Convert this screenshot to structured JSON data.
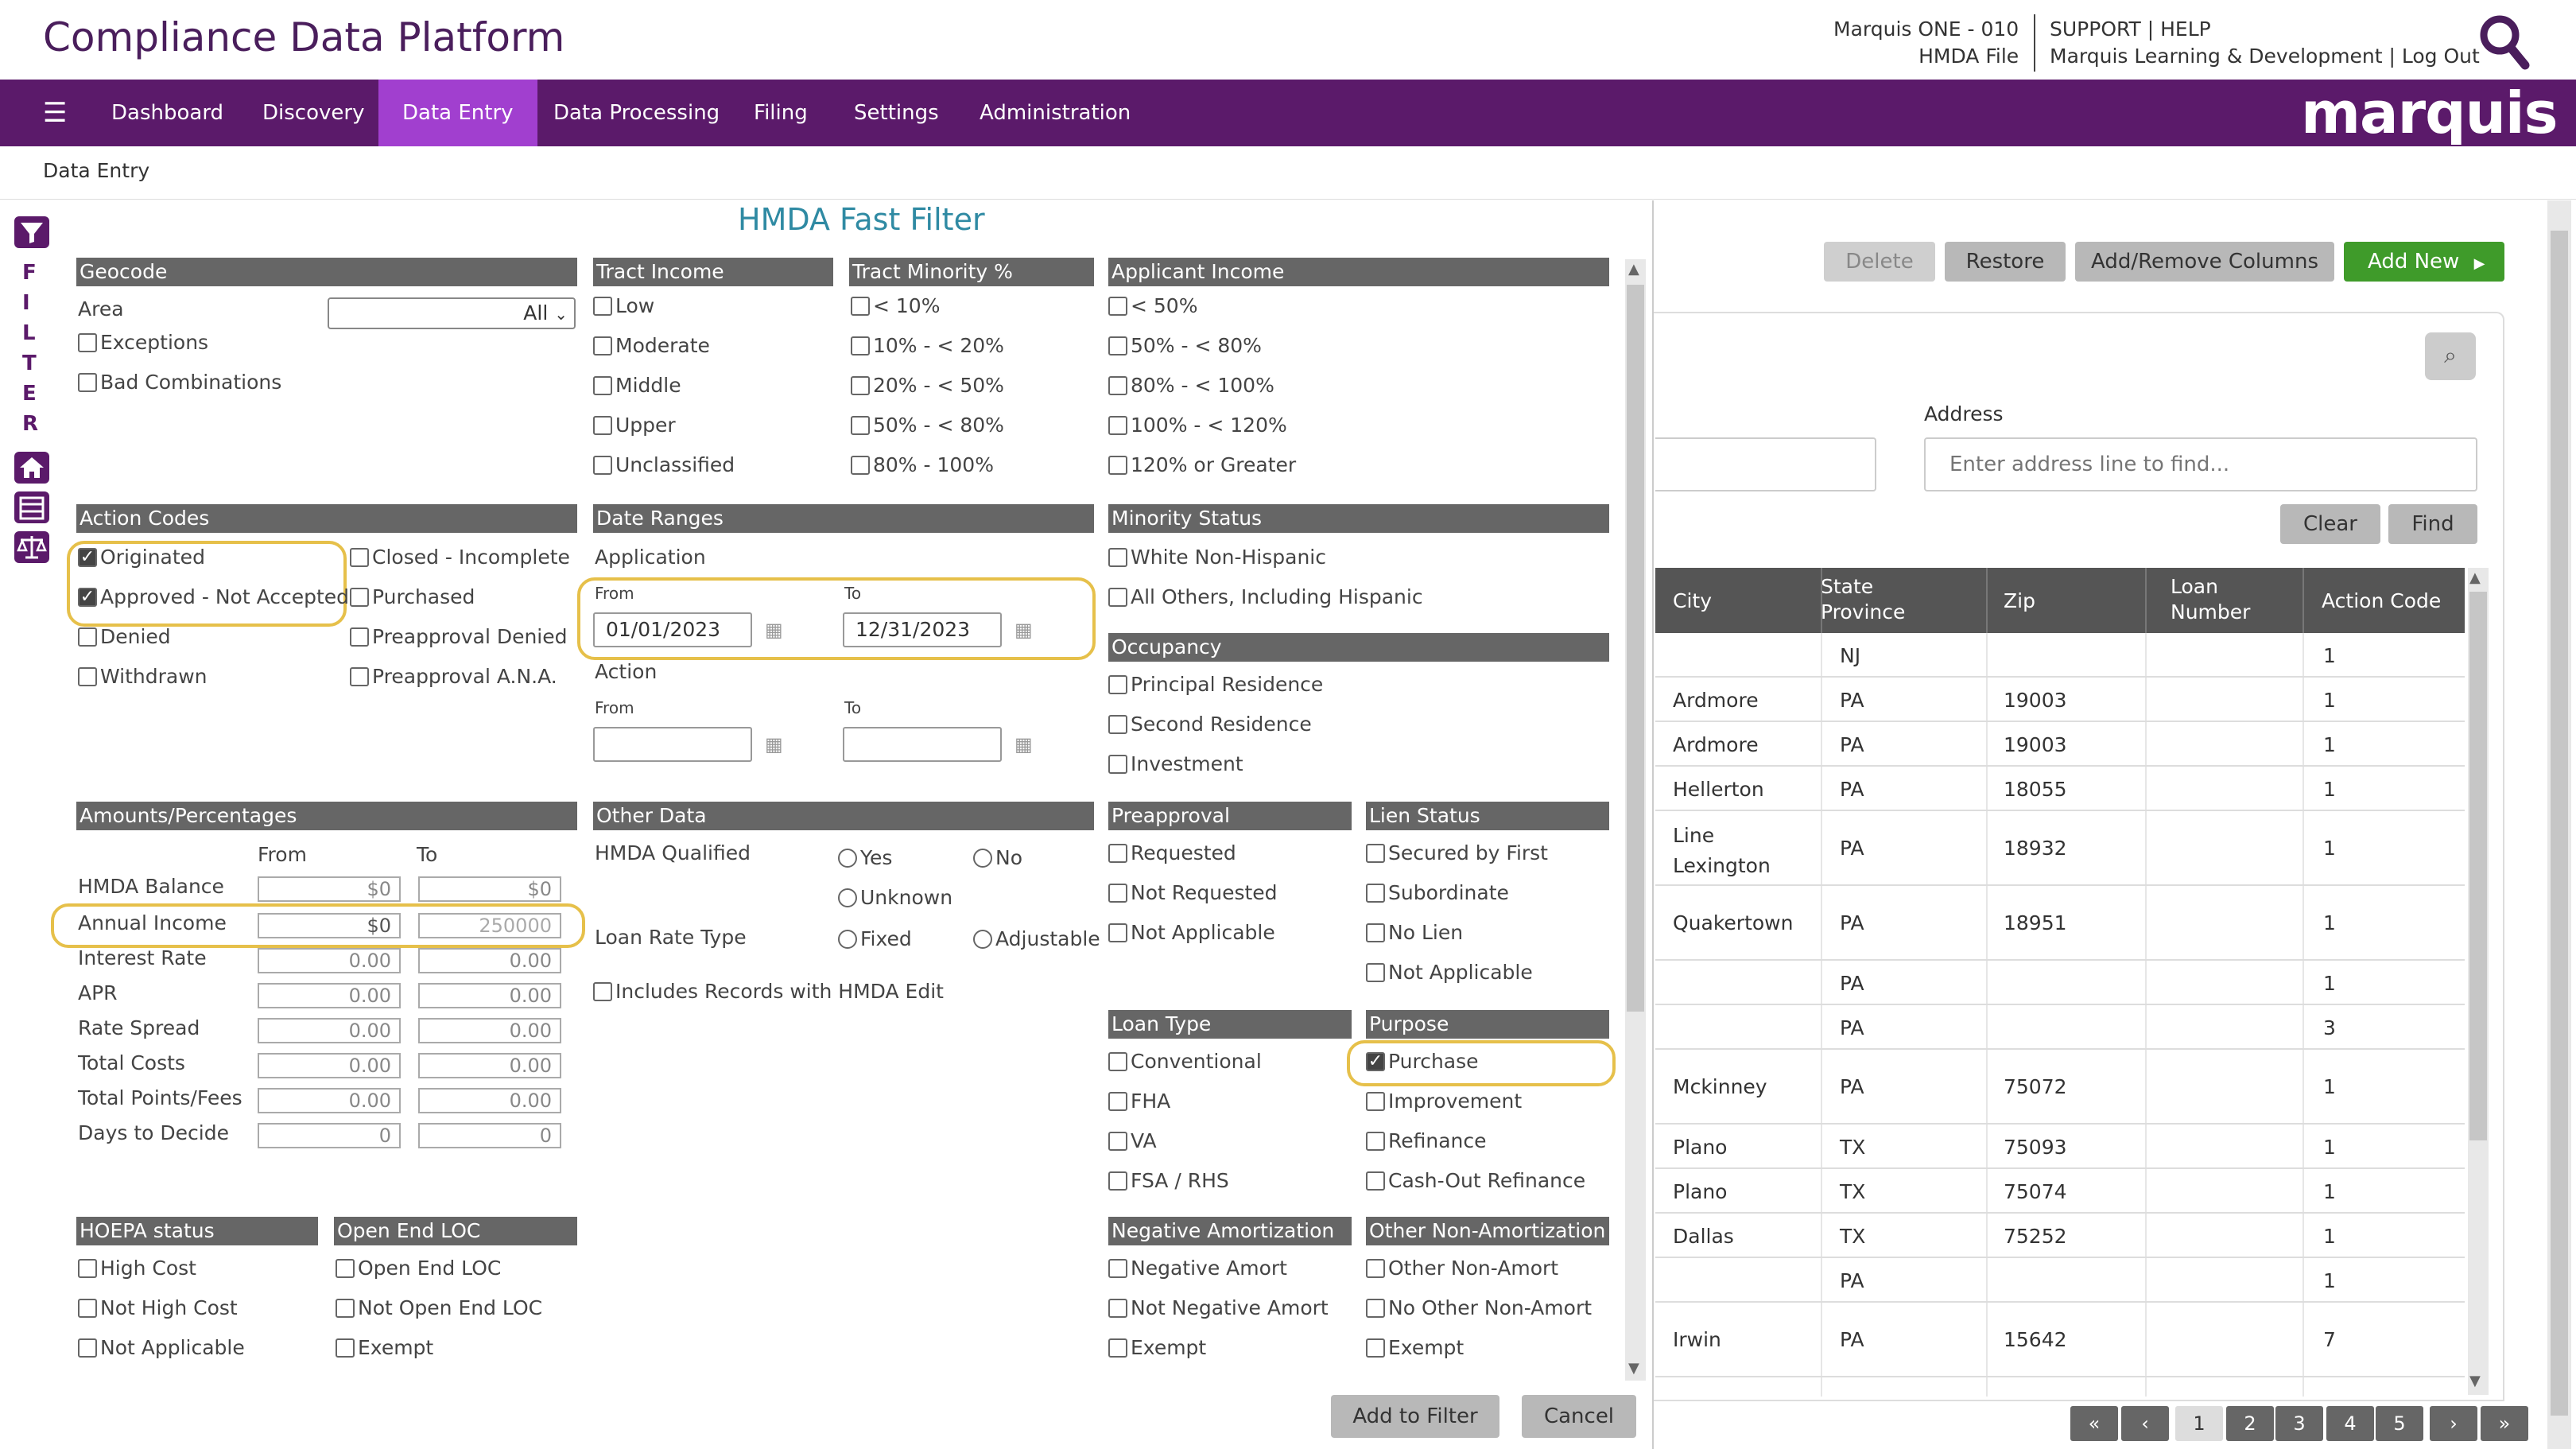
{
  "header": {
    "app_title": "Compliance Data Platform",
    "org_line1": "Marquis ONE - 010",
    "org_line2": "HMDA File",
    "links_line1": "SUPPORT | HELP",
    "links_line2": "Marquis Learning & Development | Log Out",
    "brand": "marquis"
  },
  "nav": {
    "items": [
      "Dashboard",
      "Discovery",
      "Data Entry",
      "Data Processing",
      "Filing",
      "Settings",
      "Administration"
    ],
    "active": "Data Entry"
  },
  "breadcrumb": "Data Entry",
  "sidebar": {
    "filter_letters": [
      "F",
      "I",
      "L",
      "T",
      "E",
      "R"
    ]
  },
  "filter": {
    "title": "HMDA Fast Filter",
    "geocode": {
      "header": "Geocode",
      "area_label": "Area",
      "area_value": "All",
      "exceptions": "Exceptions",
      "bad_combinations": "Bad Combinations"
    },
    "tract_income": {
      "header": "Tract Income",
      "options": [
        "Low",
        "Moderate",
        "Middle",
        "Upper",
        "Unclassified"
      ]
    },
    "tract_minority": {
      "header": "Tract Minority %",
      "options": [
        "< 10%",
        "10% - < 20%",
        "20% - < 50%",
        "50% - < 80%",
        "80% - 100%"
      ]
    },
    "applicant_income": {
      "header": "Applicant Income",
      "options": [
        "< 50%",
        "50% - < 80%",
        "80% - < 100%",
        "100% - < 120%",
        "120% or Greater"
      ]
    },
    "action_codes": {
      "header": "Action Codes",
      "originated": "Originated",
      "approved": "Approved - Not Accepted",
      "denied": "Denied",
      "withdrawn": "Withdrawn",
      "closed": "Closed - Incomplete",
      "purchased": "Purchased",
      "preapproval_denied": "Preapproval Denied",
      "preapproval_ana": "Preapproval A.N.A."
    },
    "date_ranges": {
      "header": "Date Ranges",
      "application": "Application",
      "from": "From",
      "to": "To",
      "app_from": "01/01/2023",
      "app_to": "12/31/2023",
      "action": "Action"
    },
    "minority_status": {
      "header": "Minority Status",
      "options": [
        "White Non-Hispanic",
        "All Others, Including Hispanic"
      ]
    },
    "occupancy": {
      "header": "Occupancy",
      "options": [
        "Principal Residence",
        "Second Residence",
        "Investment"
      ]
    },
    "amounts": {
      "header": "Amounts/Percentages",
      "from": "From",
      "to": "To",
      "rows": [
        {
          "label": "HMDA Balance",
          "from": "$0",
          "to": "$0"
        },
        {
          "label": "Annual Income",
          "from": "$0",
          "to": "250000"
        },
        {
          "label": "Interest Rate",
          "from": "0.00",
          "to": "0.00"
        },
        {
          "label": "APR",
          "from": "0.00",
          "to": "0.00"
        },
        {
          "label": "Rate Spread",
          "from": "0.00",
          "to": "0.00"
        },
        {
          "label": "Total Costs",
          "from": "0.00",
          "to": "0.00"
        },
        {
          "label": "Total Points/Fees",
          "from": "0.00",
          "to": "0.00"
        },
        {
          "label": "Days to Decide",
          "from": "0",
          "to": "0"
        }
      ]
    },
    "other_data": {
      "header": "Other Data",
      "hmda_qualified": "HMDA Qualified",
      "yes": "Yes",
      "no": "No",
      "unknown": "Unknown",
      "loan_rate_type": "Loan Rate Type",
      "fixed": "Fixed",
      "adjustable": "Adjustable",
      "includes_edit": "Includes Records with HMDA Edit"
    },
    "preapproval": {
      "header": "Preapproval",
      "options": [
        "Requested",
        "Not Requested",
        "Not Applicable"
      ]
    },
    "lien_status": {
      "header": "Lien Status",
      "options": [
        "Secured by First",
        "Subordinate",
        "No Lien",
        "Not Applicable"
      ]
    },
    "loan_type": {
      "header": "Loan Type",
      "options": [
        "Conventional",
        "FHA",
        "VA",
        "FSA / RHS"
      ]
    },
    "purpose": {
      "header": "Purpose",
      "options": [
        "Purchase",
        "Improvement",
        "Refinance",
        "Cash-Out Refinance"
      ]
    },
    "hoepa": {
      "header": "HOEPA status",
      "options": [
        "High Cost",
        "Not High Cost",
        "Not Applicable"
      ]
    },
    "open_end": {
      "header": "Open End LOC",
      "options": [
        "Open End LOC",
        "Not Open End LOC",
        "Exempt"
      ]
    },
    "neg_amort": {
      "header": "Negative Amortization",
      "options": [
        "Negative Amort",
        "Not Negative Amort",
        "Exempt"
      ]
    },
    "other_non_amort": {
      "header": "Other Non-Amortization",
      "options": [
        "Other Non-Amort",
        "No Other Non-Amort",
        "Exempt"
      ]
    },
    "add_button": "Add to Filter",
    "cancel_button": "Cancel"
  },
  "toolbar": {
    "delete": "Delete",
    "restore": "Restore",
    "columns": "Add/Remove Columns",
    "add_new": "Add New"
  },
  "search": {
    "address_label": "Address",
    "address_placeholder": "Enter address line to find...",
    "clear": "Clear",
    "find": "Find"
  },
  "table": {
    "headers": [
      "City",
      "State Province",
      "Zip",
      "Loan Number",
      "Action Code"
    ],
    "rows": [
      {
        "city": "",
        "state": "NJ",
        "zip": "",
        "loan": "",
        "action": "1"
      },
      {
        "city": "Ardmore",
        "state": "PA",
        "zip": "19003",
        "loan": "",
        "action": "1"
      },
      {
        "city": "Ardmore",
        "state": "PA",
        "zip": "19003",
        "loan": "",
        "action": "1"
      },
      {
        "city": "Hellerton",
        "state": "PA",
        "zip": "18055",
        "loan": "",
        "action": "1"
      },
      {
        "city": "Line Lexington",
        "state": "PA",
        "zip": "18932",
        "loan": "",
        "action": "1"
      },
      {
        "city": "Quakertown",
        "state": "PA",
        "zip": "18951",
        "loan": "",
        "action": "1"
      },
      {
        "city": "",
        "state": "PA",
        "zip": "",
        "loan": "",
        "action": "1"
      },
      {
        "city": "",
        "state": "PA",
        "zip": "",
        "loan": "",
        "action": "3"
      },
      {
        "city": "Mckinney",
        "state": "PA",
        "zip": "75072",
        "loan": "",
        "action": "1"
      },
      {
        "city": "Plano",
        "state": "TX",
        "zip": "75093",
        "loan": "",
        "action": "1"
      },
      {
        "city": "Plano",
        "state": "TX",
        "zip": "75074",
        "loan": "",
        "action": "1"
      },
      {
        "city": "Dallas",
        "state": "TX",
        "zip": "75252",
        "loan": "",
        "action": "1"
      },
      {
        "city": "",
        "state": "PA",
        "zip": "",
        "loan": "",
        "action": "1"
      },
      {
        "city": "Irwin",
        "state": "PA",
        "zip": "15642",
        "loan": "",
        "action": "7"
      }
    ]
  },
  "pager": {
    "first": "«",
    "prev": "‹",
    "pages": [
      "1",
      "2",
      "3",
      "4",
      "5"
    ],
    "next": "›",
    "last": "»",
    "current": "1"
  }
}
